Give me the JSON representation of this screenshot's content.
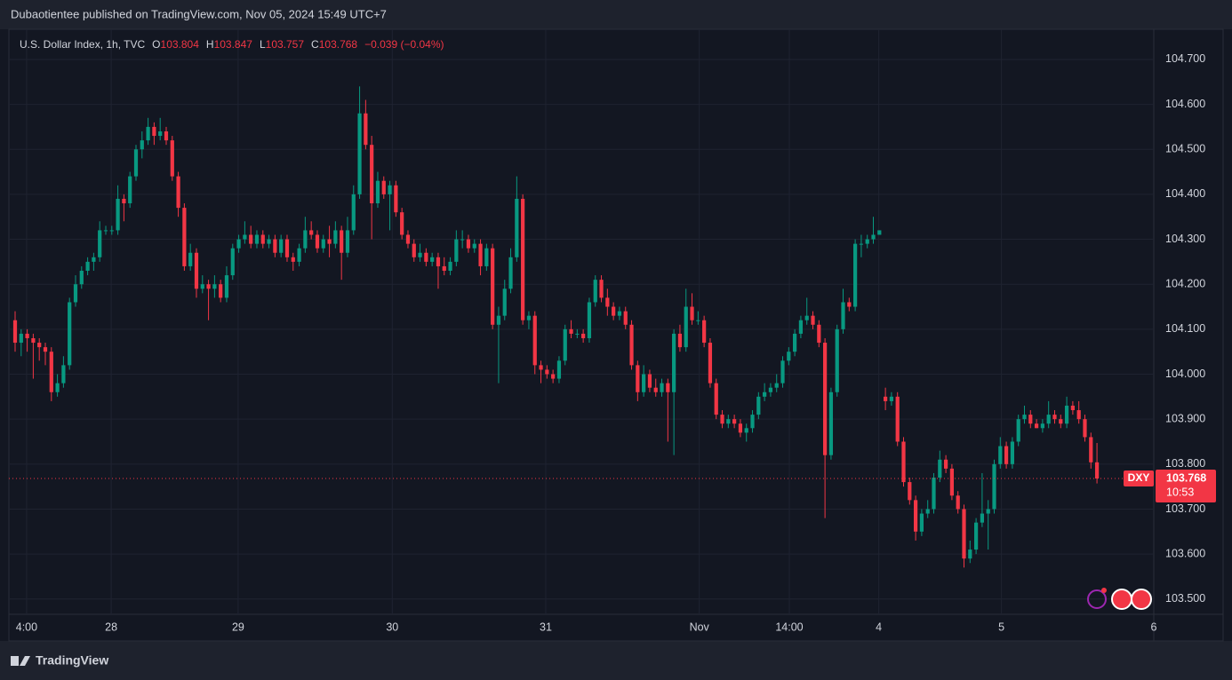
{
  "header": {
    "text": "Dubaotientee published on TradingView.com, Nov 05, 2024 15:49 UTC+7"
  },
  "footer": {
    "brand": "TradingView"
  },
  "chart_data": {
    "type": "candlestick",
    "title": "U.S. Dollar Index, 1h, TVC",
    "ohlc_letters": [
      "O",
      "H",
      "L",
      "C"
    ],
    "change_label": "−0.039 (−0.04%)",
    "symbol": "DXY",
    "countdown": "10:53",
    "up_color": "#089981",
    "down_color": "#f23645",
    "grid": true,
    "ylim": [
      103.466,
      104.767
    ],
    "yticks": [
      {
        "value": 104.7,
        "label": "104.700"
      },
      {
        "value": 104.6,
        "label": "104.600"
      },
      {
        "value": 104.5,
        "label": "104.500"
      },
      {
        "value": 104.4,
        "label": "104.400"
      },
      {
        "value": 104.3,
        "label": "104.300"
      },
      {
        "value": 104.2,
        "label": "104.200"
      },
      {
        "value": 104.1,
        "label": "104.100"
      },
      {
        "value": 104.0,
        "label": "104.000"
      },
      {
        "value": 103.9,
        "label": "103.900"
      },
      {
        "value": 103.8,
        "label": "103.800"
      },
      {
        "value": 103.7,
        "label": "103.700"
      },
      {
        "value": 103.6,
        "label": "103.600"
      },
      {
        "value": 103.5,
        "label": "103.500"
      }
    ],
    "xlim": [
      -1.03,
      188.4
    ],
    "xticks": [
      {
        "value": 1.9,
        "label": "4:00"
      },
      {
        "value": 15.9,
        "label": "28"
      },
      {
        "value": 36.9,
        "label": "29"
      },
      {
        "value": 62.4,
        "label": "30"
      },
      {
        "value": 87.8,
        "label": "31"
      },
      {
        "value": 113.2,
        "label": "Nov"
      },
      {
        "value": 128.1,
        "label": "14:00"
      },
      {
        "value": 142.9,
        "label": "4"
      },
      {
        "value": 163.2,
        "label": "5"
      },
      {
        "value": 188.4,
        "label": "6"
      }
    ],
    "candles": [
      [
        104.12,
        104.14,
        104.05,
        104.07
      ],
      [
        104.07,
        104.1,
        104.04,
        104.09
      ],
      [
        104.09,
        104.1,
        104.05,
        104.08
      ],
      [
        104.08,
        104.09,
        103.99,
        104.07
      ],
      [
        104.07,
        104.08,
        104.03,
        104.06
      ],
      [
        104.06,
        104.07,
        104.02,
        104.05
      ],
      [
        104.05,
        104.06,
        103.94,
        103.96
      ],
      [
        103.96,
        104.0,
        103.95,
        103.98
      ],
      [
        103.98,
        104.04,
        103.97,
        104.02
      ],
      [
        104.02,
        104.17,
        104.01,
        104.16
      ],
      [
        104.16,
        104.22,
        104.15,
        104.2
      ],
      [
        104.2,
        104.24,
        104.19,
        104.23
      ],
      [
        104.23,
        104.26,
        104.22,
        104.25
      ],
      [
        104.25,
        104.27,
        104.23,
        104.26
      ],
      [
        104.26,
        104.34,
        104.25,
        104.32
      ],
      [
        104.32,
        104.33,
        104.31,
        104.32
      ],
      [
        104.32,
        104.33,
        104.31,
        104.32
      ],
      [
        104.32,
        104.42,
        104.31,
        104.39
      ],
      [
        104.39,
        104.4,
        104.34,
        104.38
      ],
      [
        104.38,
        104.45,
        104.37,
        104.44
      ],
      [
        104.44,
        104.51,
        104.43,
        104.5
      ],
      [
        104.5,
        104.54,
        104.48,
        104.52
      ],
      [
        104.52,
        104.57,
        104.51,
        104.55
      ],
      [
        104.55,
        104.56,
        104.51,
        104.53
      ],
      [
        104.53,
        104.57,
        104.52,
        104.54
      ],
      [
        104.54,
        104.55,
        104.51,
        104.52
      ],
      [
        104.52,
        104.53,
        104.43,
        104.44
      ],
      [
        104.44,
        104.45,
        104.35,
        104.37
      ],
      [
        104.37,
        104.38,
        104.23,
        104.24
      ],
      [
        104.24,
        104.29,
        104.23,
        104.27
      ],
      [
        104.27,
        104.28,
        104.17,
        104.19
      ],
      [
        104.19,
        104.22,
        104.18,
        104.2
      ],
      [
        104.2,
        104.21,
        104.12,
        104.19
      ],
      [
        104.19,
        104.22,
        104.17,
        104.2
      ],
      [
        104.2,
        104.21,
        104.16,
        104.17
      ],
      [
        104.17,
        104.24,
        104.16,
        104.22
      ],
      [
        104.22,
        104.29,
        104.21,
        104.28
      ],
      [
        104.28,
        104.31,
        104.27,
        104.3
      ],
      [
        104.3,
        104.34,
        104.29,
        104.31
      ],
      [
        104.31,
        104.33,
        104.28,
        104.29
      ],
      [
        104.29,
        104.32,
        104.28,
        104.31
      ],
      [
        104.31,
        104.32,
        104.28,
        104.29
      ],
      [
        104.29,
        104.31,
        104.28,
        104.3
      ],
      [
        104.3,
        104.31,
        104.26,
        104.27
      ],
      [
        104.27,
        104.31,
        104.26,
        104.3
      ],
      [
        104.3,
        104.31,
        104.25,
        104.26
      ],
      [
        104.26,
        104.27,
        104.23,
        104.25
      ],
      [
        104.25,
        104.29,
        104.24,
        104.28
      ],
      [
        104.28,
        104.35,
        104.27,
        104.32
      ],
      [
        104.32,
        104.34,
        104.3,
        104.31
      ],
      [
        104.31,
        104.32,
        104.27,
        104.28
      ],
      [
        104.28,
        104.31,
        104.27,
        104.3
      ],
      [
        104.3,
        104.33,
        104.26,
        104.29
      ],
      [
        104.29,
        104.34,
        104.28,
        104.32
      ],
      [
        104.32,
        104.33,
        104.21,
        104.27
      ],
      [
        104.27,
        104.35,
        104.26,
        104.32
      ],
      [
        104.32,
        104.42,
        104.31,
        104.4
      ],
      [
        104.4,
        104.64,
        104.39,
        104.58
      ],
      [
        104.58,
        104.61,
        104.5,
        104.51
      ],
      [
        104.51,
        104.53,
        104.3,
        104.38
      ],
      [
        104.38,
        104.45,
        104.37,
        104.43
      ],
      [
        104.43,
        104.44,
        104.39,
        104.4
      ],
      [
        104.4,
        104.43,
        104.32,
        104.42
      ],
      [
        104.42,
        104.43,
        104.35,
        104.36
      ],
      [
        104.36,
        104.37,
        104.3,
        104.31
      ],
      [
        104.31,
        104.32,
        104.28,
        104.29
      ],
      [
        104.29,
        104.3,
        104.25,
        104.26
      ],
      [
        104.26,
        104.29,
        104.25,
        104.27
      ],
      [
        104.27,
        104.28,
        104.24,
        104.25
      ],
      [
        104.25,
        104.27,
        104.24,
        104.26
      ],
      [
        104.26,
        104.27,
        104.19,
        104.24
      ],
      [
        104.24,
        104.26,
        104.22,
        104.23
      ],
      [
        104.23,
        104.26,
        104.22,
        104.25
      ],
      [
        104.25,
        104.32,
        104.24,
        104.3
      ],
      [
        104.3,
        104.32,
        104.28,
        104.3
      ],
      [
        104.3,
        104.31,
        104.27,
        104.28
      ],
      [
        104.28,
        104.3,
        104.27,
        104.29
      ],
      [
        104.29,
        104.3,
        104.22,
        104.24
      ],
      [
        104.24,
        104.29,
        104.23,
        104.28
      ],
      [
        104.28,
        104.29,
        104.1,
        104.11
      ],
      [
        104.11,
        104.15,
        103.98,
        104.13
      ],
      [
        104.13,
        104.21,
        104.12,
        104.19
      ],
      [
        104.19,
        104.28,
        104.18,
        104.26
      ],
      [
        104.26,
        104.44,
        104.25,
        104.39
      ],
      [
        104.39,
        104.4,
        104.11,
        104.12
      ],
      [
        104.12,
        104.14,
        104.1,
        104.13
      ],
      [
        104.13,
        104.14,
        104.0,
        104.02
      ],
      [
        104.02,
        104.03,
        103.98,
        104.01
      ],
      [
        104.01,
        104.02,
        103.99,
        104.0
      ],
      [
        104.0,
        104.01,
        103.98,
        103.99
      ],
      [
        103.99,
        104.04,
        103.98,
        104.03
      ],
      [
        104.03,
        104.11,
        104.02,
        104.1
      ],
      [
        104.1,
        104.12,
        104.08,
        104.09
      ],
      [
        104.09,
        104.1,
        104.08,
        104.09
      ],
      [
        104.09,
        104.1,
        104.07,
        104.08
      ],
      [
        104.08,
        104.17,
        104.07,
        104.16
      ],
      [
        104.16,
        104.22,
        104.15,
        104.21
      ],
      [
        104.21,
        104.22,
        104.16,
        104.17
      ],
      [
        104.17,
        104.19,
        104.13,
        104.15
      ],
      [
        104.15,
        104.16,
        104.12,
        104.13
      ],
      [
        104.13,
        104.15,
        104.12,
        104.14
      ],
      [
        104.14,
        104.15,
        104.1,
        104.11
      ],
      [
        104.11,
        104.12,
        104.01,
        104.02
      ],
      [
        104.02,
        104.03,
        103.94,
        103.96
      ],
      [
        103.96,
        104.02,
        103.95,
        104.0
      ],
      [
        104.0,
        104.01,
        103.96,
        103.97
      ],
      [
        103.97,
        103.99,
        103.95,
        103.96
      ],
      [
        103.96,
        103.99,
        103.95,
        103.98
      ],
      [
        103.98,
        103.99,
        103.85,
        103.96
      ],
      [
        103.96,
        104.1,
        103.82,
        104.09
      ],
      [
        104.09,
        104.11,
        104.05,
        104.06
      ],
      [
        104.06,
        104.19,
        104.05,
        104.15
      ],
      [
        104.15,
        104.18,
        104.11,
        104.12
      ],
      [
        104.12,
        104.14,
        104.11,
        104.12
      ],
      [
        104.12,
        104.13,
        104.06,
        104.07
      ],
      [
        104.07,
        104.08,
        103.97,
        103.98
      ],
      [
        103.98,
        103.99,
        103.9,
        103.91
      ],
      [
        103.91,
        103.92,
        103.88,
        103.89
      ],
      [
        103.89,
        103.91,
        103.88,
        103.9
      ],
      [
        103.9,
        103.91,
        103.88,
        103.89
      ],
      [
        103.89,
        103.9,
        103.86,
        103.87
      ],
      [
        103.87,
        103.89,
        103.85,
        103.88
      ],
      [
        103.88,
        103.92,
        103.87,
        103.91
      ],
      [
        103.91,
        103.96,
        103.9,
        103.95
      ],
      [
        103.95,
        103.98,
        103.94,
        103.96
      ],
      [
        103.96,
        103.98,
        103.95,
        103.97
      ],
      [
        103.97,
        104.0,
        103.96,
        103.98
      ],
      [
        103.98,
        104.04,
        103.97,
        104.03
      ],
      [
        104.03,
        104.06,
        104.02,
        104.05
      ],
      [
        104.05,
        104.1,
        104.04,
        104.09
      ],
      [
        104.09,
        104.13,
        104.08,
        104.12
      ],
      [
        104.12,
        104.17,
        104.11,
        104.13
      ],
      [
        104.13,
        104.14,
        104.1,
        104.11
      ],
      [
        104.11,
        104.12,
        104.06,
        104.07
      ],
      [
        104.07,
        104.08,
        103.68,
        103.82
      ],
      [
        103.82,
        103.97,
        103.81,
        103.96
      ],
      [
        103.96,
        104.11,
        103.95,
        104.1
      ],
      [
        104.1,
        104.19,
        104.09,
        104.16
      ],
      [
        104.16,
        104.17,
        104.14,
        104.15
      ],
      [
        104.15,
        104.3,
        104.14,
        104.29
      ],
      [
        104.29,
        104.31,
        104.26,
        104.29
      ],
      [
        104.29,
        104.31,
        104.28,
        104.3
      ],
      [
        104.3,
        104.35,
        104.29,
        104.31
      ],
      [
        104.31,
        104.32,
        104.31,
        104.32
      ],
      [
        103.95,
        103.97,
        103.92,
        103.94
      ],
      [
        103.94,
        103.96,
        103.93,
        103.95
      ],
      [
        103.95,
        103.96,
        103.84,
        103.85
      ],
      [
        103.85,
        103.86,
        103.75,
        103.76
      ],
      [
        103.76,
        103.77,
        103.71,
        103.72
      ],
      [
        103.72,
        103.73,
        103.63,
        103.65
      ],
      [
        103.65,
        103.7,
        103.64,
        103.69
      ],
      [
        103.69,
        103.72,
        103.68,
        103.7
      ],
      [
        103.7,
        103.78,
        103.69,
        103.77
      ],
      [
        103.77,
        103.83,
        103.76,
        103.81
      ],
      [
        103.81,
        103.82,
        103.78,
        103.79
      ],
      [
        103.79,
        103.8,
        103.72,
        103.73
      ],
      [
        103.73,
        103.74,
        103.69,
        103.7
      ],
      [
        103.7,
        103.71,
        103.57,
        103.59
      ],
      [
        103.59,
        103.63,
        103.58,
        103.61
      ],
      [
        103.61,
        103.68,
        103.6,
        103.67
      ],
      [
        103.67,
        103.78,
        103.66,
        103.69
      ],
      [
        103.69,
        103.72,
        103.61,
        103.7
      ],
      [
        103.7,
        103.81,
        103.69,
        103.8
      ],
      [
        103.8,
        103.86,
        103.79,
        103.84
      ],
      [
        103.84,
        103.85,
        103.79,
        103.8
      ],
      [
        103.8,
        103.86,
        103.79,
        103.85
      ],
      [
        103.85,
        103.91,
        103.84,
        103.9
      ],
      [
        103.9,
        103.93,
        103.89,
        103.91
      ],
      [
        103.91,
        103.92,
        103.88,
        103.89
      ],
      [
        103.89,
        103.9,
        103.88,
        103.88
      ],
      [
        103.88,
        103.9,
        103.87,
        103.89
      ],
      [
        103.89,
        103.94,
        103.88,
        103.91
      ],
      [
        103.91,
        103.92,
        103.89,
        103.9
      ],
      [
        103.9,
        103.91,
        103.88,
        103.89
      ],
      [
        103.89,
        103.95,
        103.88,
        103.93
      ],
      [
        103.93,
        103.94,
        103.91,
        103.92
      ],
      [
        103.92,
        103.94,
        103.89,
        103.9
      ],
      [
        103.9,
        103.91,
        103.85,
        103.86
      ],
      [
        103.86,
        103.87,
        103.79,
        103.804
      ],
      [
        103.804,
        103.847,
        103.757,
        103.768
      ]
    ]
  }
}
